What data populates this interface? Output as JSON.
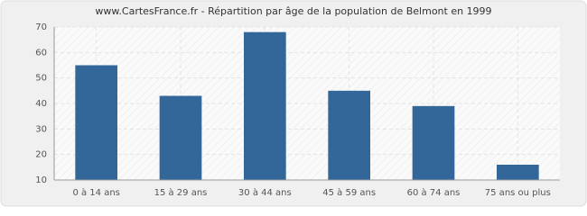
{
  "chart_data": {
    "type": "bar",
    "title": "www.CartesFrance.fr - Répartition par âge de la population de Belmont en 1999",
    "categories": [
      "0 à 14 ans",
      "15 à 29 ans",
      "30 à 44 ans",
      "45 à 59 ans",
      "60 à 74 ans",
      "75 ans ou plus"
    ],
    "values": [
      55,
      43,
      68,
      45,
      39,
      16
    ],
    "color": "#336699",
    "ylim": [
      10,
      70
    ],
    "yticks": [
      10,
      20,
      30,
      40,
      50,
      60,
      70
    ],
    "grid": true
  }
}
